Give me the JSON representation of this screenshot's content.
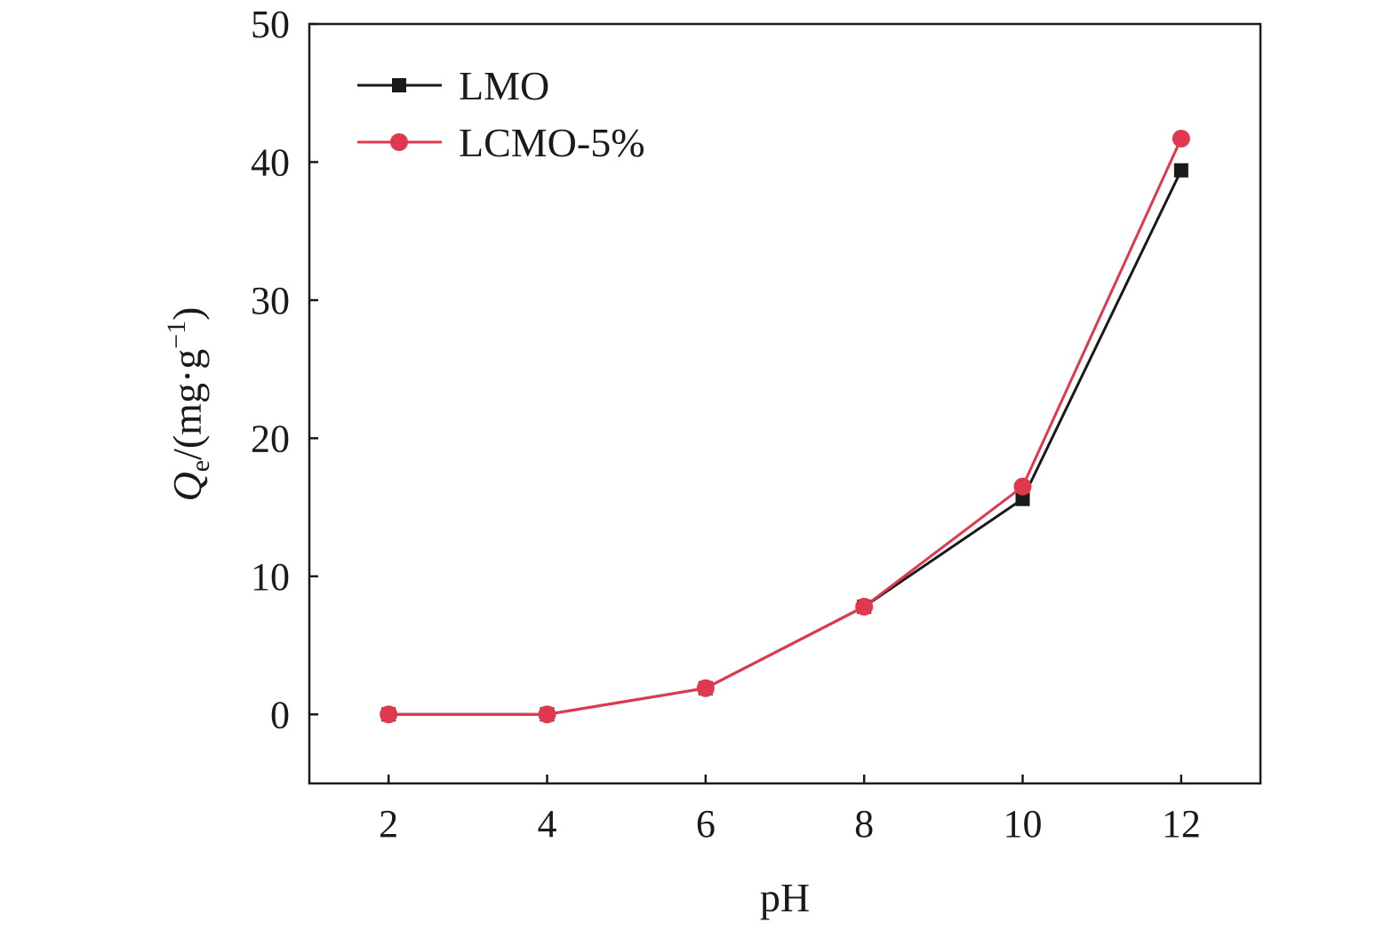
{
  "chart_data": {
    "type": "line",
    "title": "",
    "xlabel": "pH",
    "ylabel": {
      "symbol": "Q",
      "subscript": "e",
      "unit_prefix": "/(mg·g",
      "unit_superscript": "−1",
      "unit_suffix": ")"
    },
    "xlim": [
      1,
      13
    ],
    "ylim": [
      -5,
      50
    ],
    "x_ticks": [
      "2",
      "4",
      "6",
      "8",
      "10",
      "12"
    ],
    "y_ticks": [
      "0",
      "10",
      "20",
      "30",
      "40",
      "50"
    ],
    "x": [
      2,
      4,
      6,
      8,
      10,
      12
    ],
    "grid": false,
    "legend_position": "top-left",
    "series": [
      {
        "name": "LMO",
        "values": [
          0,
          0,
          1.9,
          7.8,
          15.6,
          39.4
        ],
        "color": "#1a1a1a",
        "marker": "square"
      },
      {
        "name": "LCMO-5%",
        "values": [
          0,
          0,
          1.9,
          7.8,
          16.5,
          41.7
        ],
        "color": "#e0384f",
        "marker": "circle"
      }
    ]
  }
}
